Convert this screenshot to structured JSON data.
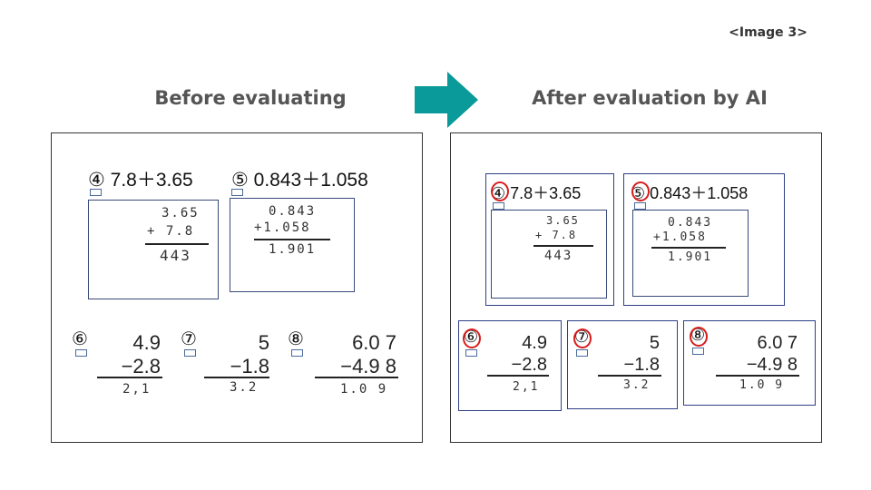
{
  "tag": "<Image 3>",
  "headings": {
    "before": "Before evaluating",
    "after": "After evaluation by AI"
  },
  "colors": {
    "arrow": "#0a9a9a",
    "circle": "#d81c1c",
    "box_border": "#3a4a7a"
  },
  "icons": {
    "arrow": "teal-right-arrow",
    "mark": "red-circle-mark"
  },
  "problems": {
    "p4": {
      "num": "④",
      "expr": "7.8＋3.65",
      "work": [
        "3.65",
        "+ 7.8",
        "443"
      ]
    },
    "p5": {
      "num": "⑤",
      "expr": "0.843＋1.058",
      "work": [
        "0.843",
        "+1.058",
        "1.901"
      ]
    },
    "p6": {
      "num": "⑥",
      "top": "4.9",
      "bottom": "−2.8",
      "answer": "2,1"
    },
    "p7": {
      "num": "⑦",
      "top": "5",
      "bottom": "−1.8",
      "answer": "3.2"
    },
    "p8": {
      "num": "⑧",
      "top": "6.0 7",
      "bottom": "−4.9 8",
      "answer": "1.0 9"
    }
  }
}
